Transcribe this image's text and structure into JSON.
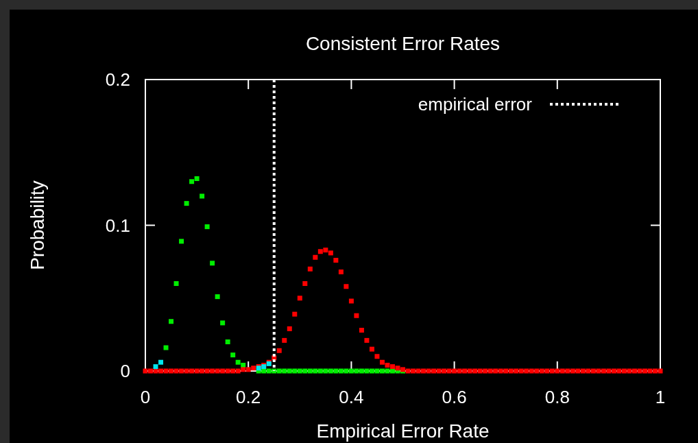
{
  "chart_data": {
    "type": "scatter",
    "title": "Consistent Error Rates",
    "xlabel": "Empirical Error Rate",
    "ylabel": "Probability",
    "xlim": [
      0,
      1
    ],
    "xticks": [
      0,
      0.2,
      0.4,
      0.6,
      0.8,
      1
    ],
    "ylim": [
      0,
      0.2
    ],
    "yticks": [
      0,
      0.1,
      0.2
    ],
    "marker": "square",
    "grid": false,
    "legend": "top right",
    "series": [
      {
        "color": "#00ee00",
        "x": [
          0.04,
          0.05,
          0.06,
          0.07,
          0.08,
          0.09,
          0.1,
          0.11,
          0.12,
          0.13,
          0.14,
          0.15,
          0.16,
          0.17,
          0.18,
          0.19,
          0.22,
          0.23,
          0.24,
          0.25,
          0.26,
          0.27,
          0.28,
          0.29,
          0.3,
          0.31,
          0.32,
          0.33,
          0.34,
          0.35,
          0.36,
          0.37,
          0.38,
          0.39,
          0.4,
          0.41,
          0.42,
          0.43,
          0.44,
          0.45,
          0.46,
          0.47,
          0.48,
          0.49,
          0.5
        ],
        "values": [
          0.016,
          0.034,
          0.06,
          0.089,
          0.115,
          0.13,
          0.132,
          0.12,
          0.099,
          0.074,
          0.051,
          0.033,
          0.02,
          0.011,
          0.006,
          0.004,
          0,
          0,
          0,
          0,
          0,
          0,
          0,
          0,
          0,
          0,
          0,
          0,
          0,
          0,
          0,
          0,
          0,
          0,
          0,
          0,
          0,
          0,
          0,
          0,
          0,
          0,
          0,
          0,
          0
        ]
      },
      {
        "color": "#ff0000",
        "x": [
          0,
          0.01,
          0.02,
          0.03,
          0.04,
          0.05,
          0.06,
          0.07,
          0.08,
          0.09,
          0.1,
          0.11,
          0.12,
          0.13,
          0.14,
          0.15,
          0.16,
          0.17,
          0.18,
          0.19,
          0.2,
          0.21,
          0.22,
          0.23,
          0.24,
          0.25,
          0.26,
          0.27,
          0.28,
          0.29,
          0.3,
          0.31,
          0.32,
          0.33,
          0.34,
          0.35,
          0.36,
          0.37,
          0.38,
          0.39,
          0.4,
          0.41,
          0.42,
          0.43,
          0.44,
          0.45,
          0.46,
          0.47,
          0.48,
          0.49,
          0.5,
          0.51,
          0.52,
          0.53,
          0.54,
          0.55,
          0.56,
          0.57,
          0.58,
          0.59,
          0.6,
          0.61,
          0.62,
          0.63,
          0.64,
          0.65,
          0.66,
          0.67,
          0.68,
          0.69,
          0.7,
          0.71,
          0.72,
          0.73,
          0.74,
          0.75,
          0.76,
          0.77,
          0.78,
          0.79,
          0.8,
          0.81,
          0.82,
          0.83,
          0.84,
          0.85,
          0.86,
          0.87,
          0.88,
          0.89,
          0.9,
          0.91,
          0.92,
          0.93,
          0.94,
          0.95,
          0.96,
          0.97,
          0.98,
          0.99,
          1
        ],
        "values": [
          0,
          0,
          0,
          0,
          0,
          0,
          0,
          0,
          0,
          0,
          0,
          0,
          0,
          0,
          0,
          0,
          0,
          0,
          0,
          0.001,
          0.001,
          0.002,
          0.003,
          0.004,
          0.006,
          0.009,
          0.014,
          0.021,
          0.029,
          0.039,
          0.05,
          0.06,
          0.07,
          0.078,
          0.082,
          0.083,
          0.081,
          0.076,
          0.068,
          0.058,
          0.048,
          0.038,
          0.028,
          0.021,
          0.015,
          0.01,
          0.006,
          0.004,
          0.003,
          0.002,
          0.001,
          0,
          0,
          0,
          0,
          0,
          0,
          0,
          0,
          0,
          0,
          0,
          0,
          0,
          0,
          0,
          0,
          0,
          0,
          0,
          0,
          0,
          0,
          0,
          0,
          0,
          0,
          0,
          0,
          0,
          0,
          0,
          0,
          0,
          0,
          0,
          0,
          0,
          0,
          0,
          0,
          0,
          0,
          0,
          0,
          0,
          0,
          0,
          0,
          0,
          0
        ]
      },
      {
        "color": "#00e5ee",
        "x": [
          0.02,
          0.03,
          0.22,
          0.23,
          0.24
        ],
        "values": [
          0.003,
          0.006,
          0.002,
          0.003,
          0.005
        ]
      }
    ],
    "ref_lines": [
      {
        "axis": "x",
        "value": 0.25,
        "label": "empirical error",
        "color": "#ffffff",
        "line_style": "dotted"
      }
    ]
  }
}
